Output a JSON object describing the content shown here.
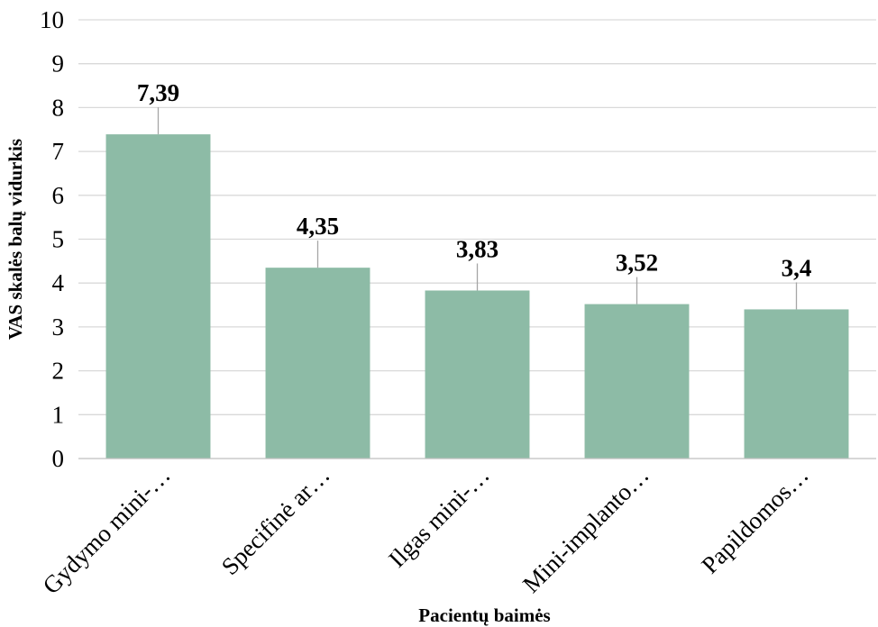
{
  "chart_data": {
    "type": "bar",
    "categories": [
      "Gydymo mini-…",
      "Specifinė ar…",
      "Ilgas mini-…",
      "Mini-implanto…",
      "Papildomos…"
    ],
    "values": [
      7.39,
      4.35,
      3.83,
      3.52,
      3.4
    ],
    "data_labels": [
      "7,39",
      "4,35",
      "3,83",
      "3,52",
      "3,4"
    ],
    "xlabel": "Pacientų baimės",
    "ylabel": "VAS skalės balų vidurkis",
    "ylim": [
      0,
      10
    ],
    "yticks": [
      0,
      1,
      2,
      3,
      4,
      5,
      6,
      7,
      8,
      9,
      10
    ],
    "grid": true,
    "legend": "none",
    "colors": {
      "bar": "#8dbba6"
    }
  }
}
